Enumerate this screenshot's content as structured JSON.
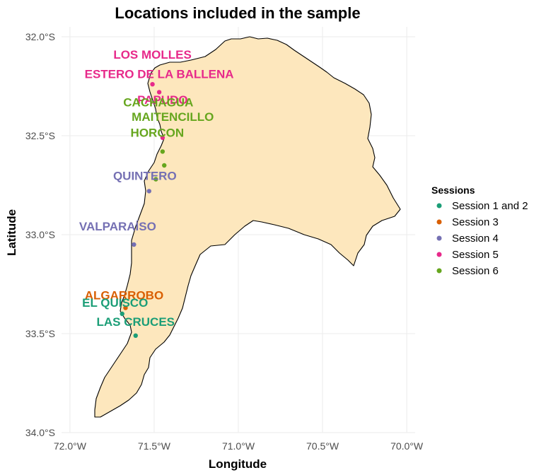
{
  "title": "Locations included in the sample",
  "xlabel": "Longitude",
  "ylabel": "Latitude",
  "x_ticks": [
    {
      "value": -72.0,
      "label": "72.0°W"
    },
    {
      "value": -71.5,
      "label": "71.5°W"
    },
    {
      "value": -71.0,
      "label": "71.0°W"
    },
    {
      "value": -70.5,
      "label": "70.5°W"
    },
    {
      "value": -70.0,
      "label": "70.0°W"
    }
  ],
  "y_ticks": [
    {
      "value": -32.0,
      "label": "32.0°S"
    },
    {
      "value": -32.5,
      "label": "32.5°S"
    },
    {
      "value": -33.0,
      "label": "33.0°S"
    },
    {
      "value": -33.5,
      "label": "33.5°S"
    },
    {
      "value": -34.0,
      "label": "34.0°S"
    }
  ],
  "xlim": [
    -72.05,
    -69.95
  ],
  "ylim": [
    -34.0,
    -31.95
  ],
  "region_fill": "#fde7bd",
  "legend": {
    "title": "Sessions",
    "position": "right",
    "items": [
      {
        "key": "s12",
        "label": "Session 1 and 2",
        "color": "#1b9e77"
      },
      {
        "key": "s3",
        "label": "Session 3",
        "color": "#d95f02"
      },
      {
        "key": "s4",
        "label": "Session 4",
        "color": "#7570b3"
      },
      {
        "key": "s5",
        "label": "Session 5",
        "color": "#e7298a"
      },
      {
        "key": "s6",
        "label": "Session 6",
        "color": "#66a61e"
      }
    ]
  },
  "locations": [
    {
      "name": "LOS MOLLES",
      "session": "s5",
      "lon": -71.51,
      "lat": -32.24
    },
    {
      "name": "ESTERO DE LA BALLENA",
      "session": "s5",
      "lon": -71.47,
      "lat": -32.28
    },
    {
      "name": "PAPUDO",
      "session": "s5",
      "lon": -71.45,
      "lat": -32.51
    },
    {
      "name": "CACHAGUA",
      "session": "s6",
      "lon": -71.45,
      "lat": -32.58
    },
    {
      "name": "MAITENCILLO",
      "session": "s6",
      "lon": -71.44,
      "lat": -32.65
    },
    {
      "name": "HORCON",
      "session": "s6",
      "lon": -71.49,
      "lat": -32.72
    },
    {
      "name": "QUINTERO",
      "session": "s4",
      "lon": -71.53,
      "lat": -32.78
    },
    {
      "name": "VALPARAÍSO",
      "session": "s4",
      "lon": -71.62,
      "lat": -33.05
    },
    {
      "name": "ALGARROBO",
      "session": "s3",
      "lon": -71.67,
      "lat": -33.37
    },
    {
      "name": "EL QUISCO",
      "session": "s12",
      "lon": -71.69,
      "lat": -33.4
    },
    {
      "name": "LAS CRUCES",
      "session": "s12",
      "lon": -71.61,
      "lat": -33.51
    }
  ]
}
